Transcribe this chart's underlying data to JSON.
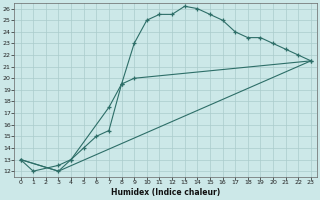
{
  "xlabel": "Humidex (Indice chaleur)",
  "bg_color": "#cce8e8",
  "grid_color": "#aacccc",
  "line_color": "#2d6e68",
  "xlim": [
    -0.5,
    23.5
  ],
  "ylim": [
    11.5,
    26.5
  ],
  "xticks": [
    0,
    1,
    2,
    3,
    4,
    5,
    6,
    7,
    8,
    9,
    10,
    11,
    12,
    13,
    14,
    15,
    16,
    17,
    18,
    19,
    20,
    21,
    22,
    23
  ],
  "yticks": [
    12,
    13,
    14,
    15,
    16,
    17,
    18,
    19,
    20,
    21,
    22,
    23,
    24,
    25,
    26
  ],
  "line1_x": [
    0,
    1,
    3,
    4,
    7,
    8,
    9,
    10,
    11,
    12,
    13,
    14,
    15,
    16,
    17,
    18,
    19,
    20,
    21,
    22,
    23
  ],
  "line1_y": [
    13,
    12,
    12.5,
    13,
    17.5,
    19.5,
    23,
    25,
    25.5,
    25.5,
    26.2,
    26,
    25.5,
    25,
    24,
    23.5,
    23.5,
    23,
    22.5,
    22,
    21.5
  ],
  "line2_x": [
    0,
    3,
    4,
    5,
    6,
    7,
    8,
    9,
    23
  ],
  "line2_y": [
    13,
    12,
    13,
    14,
    15,
    15.5,
    19.5,
    20,
    21.5
  ],
  "line3_x": [
    0,
    3,
    23
  ],
  "line3_y": [
    13,
    12,
    21.5
  ]
}
